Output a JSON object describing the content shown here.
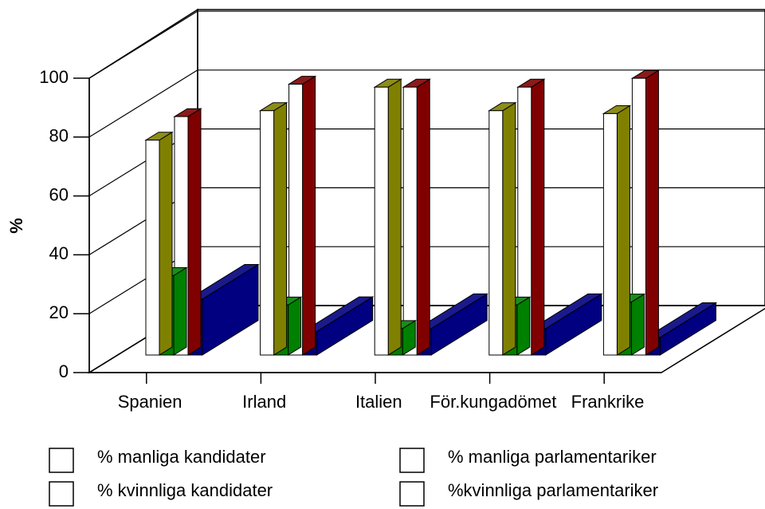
{
  "chart_data": {
    "type": "bar3d",
    "y_label": "%",
    "categories": [
      "Spanien",
      "Irland",
      "Italien",
      "För.kungadömet",
      "Frankrike"
    ],
    "series": [
      {
        "name": "% manliga kandidater",
        "color": "#808000",
        "values": [
          73,
          83,
          91,
          83,
          82
        ]
      },
      {
        "name": "% kvinnliga kandidater",
        "color": "#008000",
        "values": [
          27,
          17,
          9,
          17,
          18
        ]
      },
      {
        "name": "% manliga parlamentariker",
        "color": "#800000",
        "values": [
          81,
          92,
          91,
          91,
          94
        ]
      },
      {
        "name": "%kvinnliga parlamentariker",
        "color": "#000080",
        "values": [
          19,
          8,
          9,
          9,
          6
        ]
      }
    ],
    "ylim": [
      0,
      100
    ],
    "yticks": [
      0,
      20,
      40,
      60,
      80,
      100
    ],
    "grid": true
  }
}
